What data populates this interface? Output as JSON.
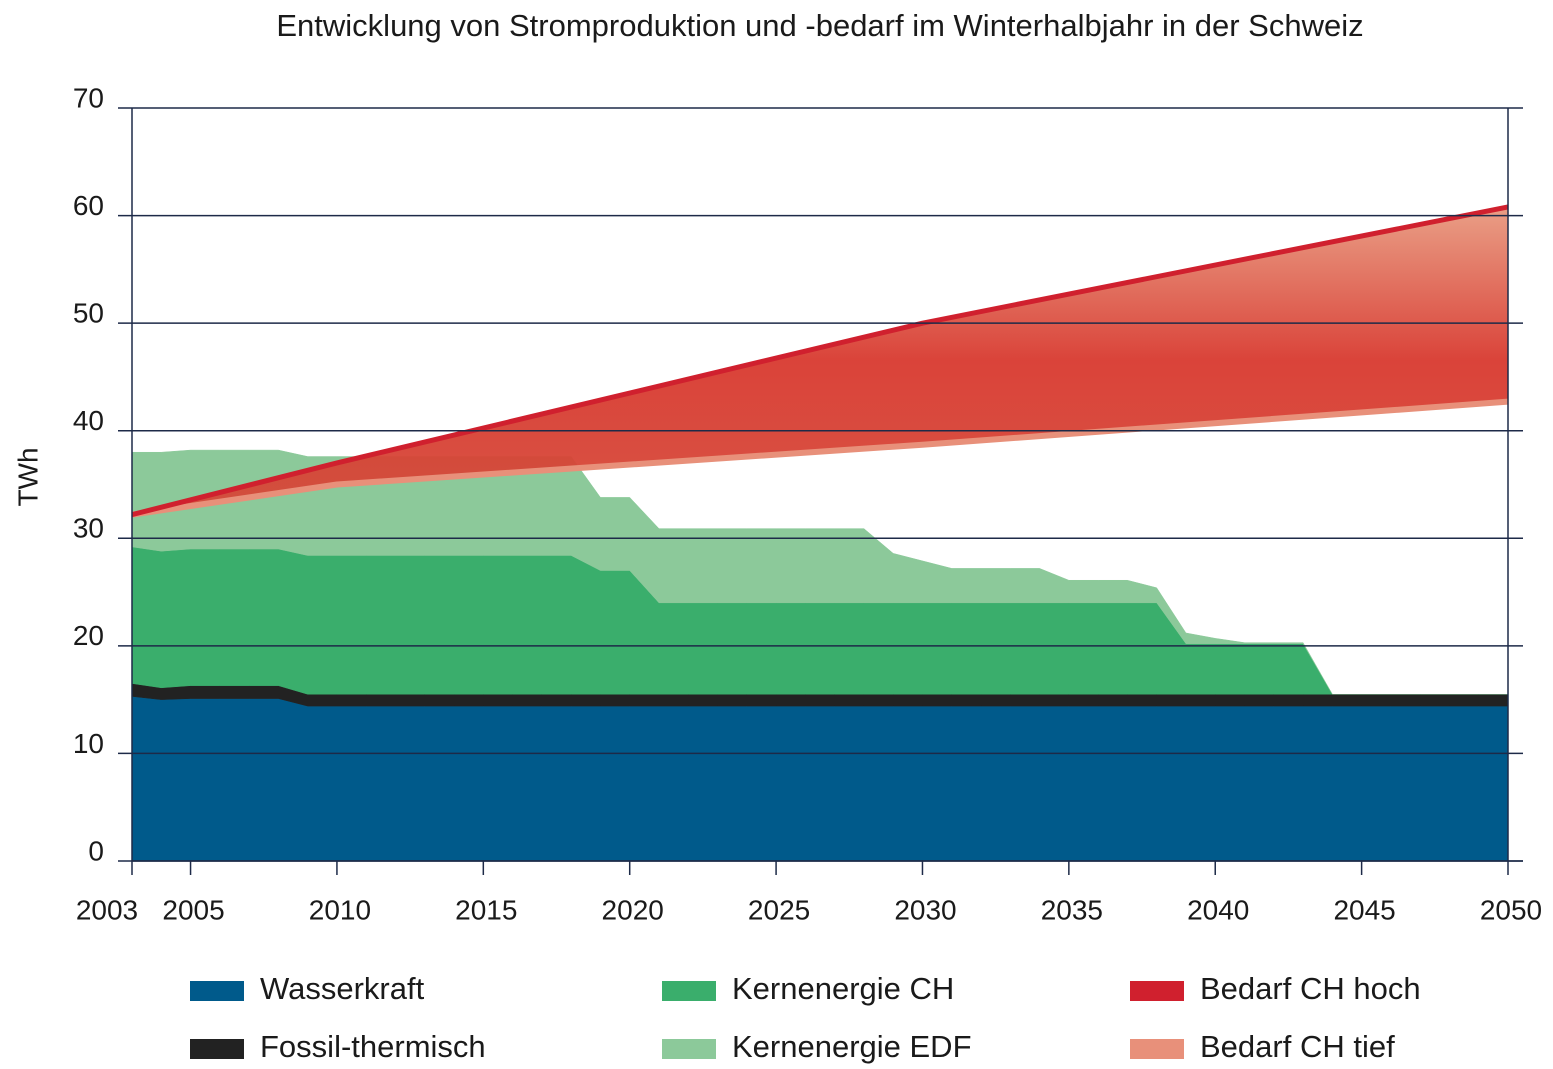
{
  "chart_data": {
    "type": "stacked-area",
    "title": "Entwicklung von Stromproduktion und -bedarf im Winterhalbjahr in der Schweiz",
    "ylabel": "TWh",
    "x": [
      2003,
      2004,
      2005,
      2006,
      2007,
      2008,
      2009,
      2010,
      2011,
      2012,
      2013,
      2014,
      2015,
      2016,
      2017,
      2018,
      2019,
      2020,
      2021,
      2022,
      2023,
      2024,
      2025,
      2026,
      2027,
      2028,
      2029,
      2030,
      2031,
      2032,
      2033,
      2034,
      2035,
      2036,
      2037,
      2038,
      2039,
      2040,
      2041,
      2042,
      2043,
      2044,
      2045,
      2046,
      2047,
      2048,
      2049,
      2050
    ],
    "xlim": [
      2003,
      2050
    ],
    "xticks": [
      2003,
      2005,
      2010,
      2015,
      2020,
      2025,
      2030,
      2035,
      2040,
      2045,
      2050
    ],
    "ylim": [
      0,
      70
    ],
    "yticks": [
      0,
      10,
      20,
      30,
      40,
      50,
      60,
      70
    ],
    "grid": true,
    "series": [
      {
        "name": "Wasserkraft",
        "color": "#005a8b",
        "kind": "area",
        "values": [
          15.3,
          15.0,
          15.1,
          15.1,
          15.1,
          15.1,
          14.4,
          14.4,
          14.4,
          14.4,
          14.4,
          14.4,
          14.4,
          14.4,
          14.4,
          14.4,
          14.4,
          14.4,
          14.4,
          14.4,
          14.4,
          14.4,
          14.4,
          14.4,
          14.4,
          14.4,
          14.4,
          14.4,
          14.4,
          14.4,
          14.4,
          14.4,
          14.4,
          14.4,
          14.4,
          14.4,
          14.4,
          14.4,
          14.4,
          14.4,
          14.4,
          14.4,
          14.4,
          14.4,
          14.4,
          14.4,
          14.4,
          14.4
        ]
      },
      {
        "name": "Fossil-thermisch",
        "color": "#222222",
        "kind": "area",
        "values": [
          1.2,
          1.1,
          1.2,
          1.2,
          1.2,
          1.2,
          1.1,
          1.1,
          1.1,
          1.1,
          1.1,
          1.1,
          1.1,
          1.1,
          1.1,
          1.1,
          1.1,
          1.1,
          1.1,
          1.1,
          1.1,
          1.1,
          1.1,
          1.1,
          1.1,
          1.1,
          1.1,
          1.1,
          1.1,
          1.1,
          1.1,
          1.1,
          1.1,
          1.1,
          1.1,
          1.1,
          1.1,
          1.1,
          1.1,
          1.1,
          1.1,
          1.1,
          1.1,
          1.1,
          1.1,
          1.1,
          1.1,
          1.1
        ]
      },
      {
        "name": "Kernenergie CH",
        "color": "#3aae6c",
        "kind": "area",
        "values": [
          12.7,
          12.7,
          12.7,
          12.7,
          12.7,
          12.7,
          12.9,
          12.9,
          12.9,
          12.9,
          12.9,
          12.9,
          12.9,
          12.9,
          12.9,
          12.9,
          11.5,
          11.5,
          8.5,
          8.5,
          8.5,
          8.5,
          8.5,
          8.5,
          8.5,
          8.5,
          8.5,
          8.5,
          8.5,
          8.5,
          8.5,
          8.5,
          8.5,
          8.5,
          8.5,
          8.5,
          4.7,
          4.7,
          4.7,
          4.7,
          4.7,
          0,
          0,
          0,
          0,
          0,
          0,
          0
        ]
      },
      {
        "name": "Kernenergie EDF",
        "color": "#8cc99a",
        "kind": "area",
        "values": [
          8.8,
          9.2,
          9.2,
          9.2,
          9.2,
          9.2,
          9.2,
          9.2,
          9.2,
          9.2,
          9.2,
          9.2,
          9.2,
          9.2,
          9.2,
          9.2,
          6.8,
          6.8,
          6.9,
          6.9,
          6.9,
          6.9,
          6.9,
          6.9,
          6.9,
          6.9,
          4.6,
          3.9,
          3.2,
          3.2,
          3.2,
          3.2,
          2.1,
          2.1,
          2.1,
          1.4,
          1.0,
          0.5,
          0.1,
          0.1,
          0.1,
          0,
          0,
          0,
          0,
          0,
          0,
          0
        ]
      },
      {
        "name": "Bedarf CH hoch",
        "color": "#d0202e",
        "kind": "line",
        "x": [
          2003,
          2010,
          2030,
          2050
        ],
        "values": [
          32.2,
          37,
          50,
          60.8
        ]
      },
      {
        "name": "Bedarf CH tief",
        "color": "#e8907a",
        "kind": "line",
        "x": [
          2003,
          2010,
          2030,
          2050
        ],
        "values": [
          32.2,
          35,
          38.7,
          42.7
        ]
      }
    ]
  }
}
